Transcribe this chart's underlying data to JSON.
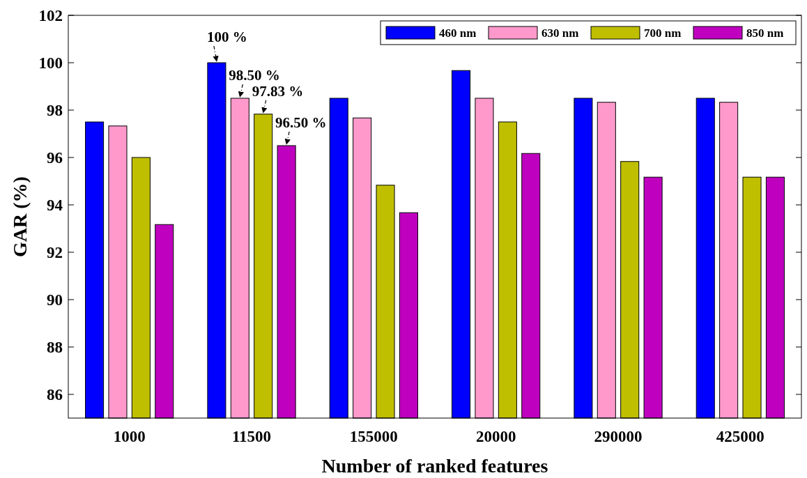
{
  "chart_data": {
    "type": "bar",
    "xlabel": "Number of ranked features",
    "ylabel": "GAR (%)",
    "categories": [
      "1000",
      "11500",
      "155000",
      "20000",
      "290000",
      "425000"
    ],
    "series": [
      {
        "name": "460 nm",
        "color": "#0000ff",
        "values": [
          97.5,
          100,
          98.5,
          99.67,
          98.5,
          98.5
        ]
      },
      {
        "name": "630 nm",
        "color": "#ff99cc",
        "values": [
          97.33,
          98.5,
          97.67,
          98.5,
          98.33,
          98.33
        ]
      },
      {
        "name": "700 nm",
        "color": "#bfbf00",
        "values": [
          96,
          97.83,
          94.83,
          97.5,
          95.83,
          95.17
        ]
      },
      {
        "name": "850 nm",
        "color": "#bf00bf",
        "values": [
          93.17,
          96.5,
          93.67,
          96.17,
          95.17,
          95.17
        ]
      }
    ],
    "ylim": [
      85,
      102
    ],
    "yticks": [
      86,
      88,
      90,
      92,
      94,
      96,
      98,
      100,
      102
    ],
    "grid": false,
    "legend": "top right",
    "annotations": [
      "100 %",
      {
        "text": "98.50 %",
        "x": "11500",
        "y": 98.5
      },
      {
        "text": "97.83 %",
        "x": "11500",
        "y": 97.83
      },
      {
        "text": "96.50 %",
        "x": "11500",
        "y": 96.5
      }
    ]
  }
}
